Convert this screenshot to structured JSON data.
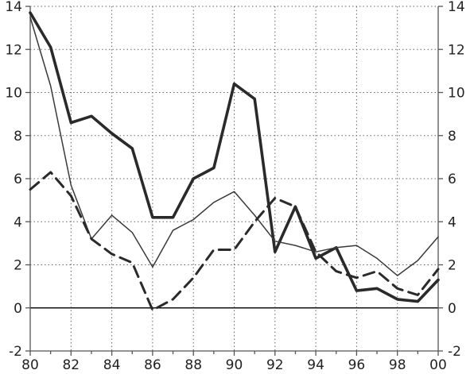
{
  "chart_data": {
    "type": "line",
    "title": "",
    "xlabel": "",
    "ylabel": "",
    "x": [
      1980,
      1981,
      1982,
      1983,
      1984,
      1985,
      1986,
      1987,
      1988,
      1989,
      1990,
      1991,
      1992,
      1993,
      1994,
      1995,
      1996,
      1997,
      1998,
      1999,
      2000
    ],
    "x_tick_labels": [
      "80",
      "82",
      "84",
      "86",
      "88",
      "90",
      "92",
      "94",
      "96",
      "98",
      "00"
    ],
    "y_ticks": [
      -2,
      0,
      2,
      4,
      6,
      8,
      10,
      12,
      14
    ],
    "ylim": [
      -2,
      14
    ],
    "ylim_right": [
      -2,
      14
    ],
    "grid": true,
    "grid_style": "dotted",
    "legend": "none",
    "series": [
      {
        "style": "thick-solid",
        "color": "#2a2a2a",
        "values": [
          13.7,
          12.1,
          8.6,
          8.9,
          8.1,
          7.4,
          4.2,
          4.2,
          6.0,
          6.5,
          10.4,
          9.7,
          2.6,
          4.7,
          2.3,
          2.8,
          0.8,
          0.9,
          0.4,
          0.3,
          1.3
        ]
      },
      {
        "style": "thin-solid",
        "color": "#3a3a3a",
        "values": [
          13.5,
          10.3,
          5.7,
          3.2,
          4.3,
          3.5,
          1.9,
          3.6,
          4.1,
          4.9,
          5.4,
          4.3,
          3.1,
          2.9,
          2.6,
          2.8,
          2.9,
          2.3,
          1.5,
          2.2,
          3.3
        ]
      },
      {
        "style": "dashed",
        "color": "#2a2a2a",
        "values": [
          5.5,
          6.3,
          5.2,
          3.2,
          2.5,
          2.1,
          -0.1,
          0.4,
          1.4,
          2.7,
          2.7,
          4.0,
          5.1,
          4.7,
          2.6,
          1.7,
          1.4,
          1.7,
          0.9,
          0.6,
          1.8
        ]
      }
    ]
  }
}
